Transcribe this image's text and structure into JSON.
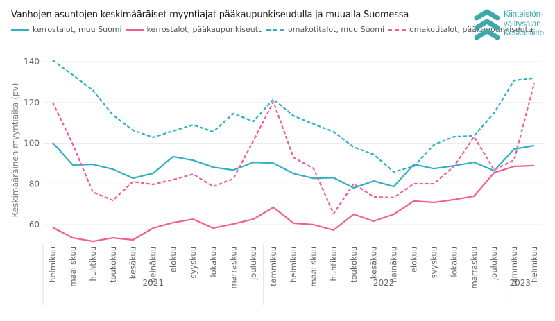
{
  "chart_data": {
    "type": "line",
    "title": "Vanhojen asuntojen keskimääräiset myyntiajat pääkaupunkiseudulla ja muualla Suomessa",
    "xlabel": "",
    "ylabel": "Keskimääräinen myyntiaika (pv)",
    "ylim": [
      50,
      145
    ],
    "yticks": [
      60,
      80,
      100,
      120,
      140
    ],
    "grid": true,
    "legend_position": "top-left",
    "categories": [
      "helmikuu",
      "maaliskuu",
      "huhtikuu",
      "toukokuu",
      "kesäkuu",
      "heinäkuu",
      "elokuu",
      "syyskuu",
      "lokakuu",
      "marraskuu",
      "joulukuu",
      "tammikuu",
      "helmikuu",
      "maaliskuu",
      "huhtikuu",
      "toukokuu",
      "kesäkuu",
      "heinäkuu",
      "elokuu",
      "syyskuu",
      "lokakuu",
      "marraskuu",
      "joulukuu",
      "tammikuu",
      "helmikuu"
    ],
    "year_groups": [
      {
        "label": "2021",
        "count": 11
      },
      {
        "label": "2022",
        "count": 12
      },
      {
        "label": "2023",
        "count": 2
      }
    ],
    "series": [
      {
        "name": "kerrostalot, muu Suomi",
        "color": "#2fb0c3",
        "dash": false,
        "values": [
          100.2,
          89.3,
          89.6,
          87.2,
          82.8,
          85.2,
          93.4,
          91.6,
          88.2,
          86.8,
          90.6,
          90.2,
          85.1,
          82.7,
          83.0,
          78.0,
          81.4,
          78.7,
          89.6,
          87.5,
          88.9,
          90.6,
          86.5,
          97.1,
          98.8
        ]
      },
      {
        "name": "kerrostalot, pääkaupunkiseutu",
        "color": "#f45d92",
        "dash": false,
        "values": [
          58.6,
          53.5,
          51.8,
          53.5,
          52.5,
          58.3,
          61.0,
          62.7,
          58.3,
          60.3,
          62.7,
          68.5,
          60.7,
          60.0,
          57.3,
          65.1,
          61.7,
          65.1,
          71.6,
          70.9,
          72.3,
          74.0,
          85.5,
          88.6,
          89.0
        ]
      },
      {
        "name": "omakotitalot, muu Suomi",
        "color": "#2fb0c3",
        "dash": true,
        "values": [
          140.7,
          133.5,
          126.0,
          113.8,
          106.3,
          102.9,
          106.0,
          109.0,
          105.6,
          114.5,
          110.7,
          121.6,
          113.4,
          109.4,
          105.6,
          98.1,
          94.4,
          85.9,
          88.6,
          99.2,
          103.2,
          103.6,
          114.8,
          130.8,
          131.9
        ]
      },
      {
        "name": "omakotitalot, pääkaupunkiseutu",
        "color": "#f45d92",
        "dash": true,
        "values": [
          120.0,
          99.5,
          76.0,
          71.9,
          81.1,
          79.7,
          82.1,
          84.8,
          78.7,
          82.5,
          101.2,
          120.3,
          93.0,
          87.6,
          65.4,
          80.1,
          73.6,
          73.3,
          80.1,
          80.1,
          88.6,
          103.2,
          86.9,
          91.7,
          129.4
        ]
      }
    ]
  },
  "logo": {
    "lines": [
      "Kiinteistön-",
      "välitysalan",
      "Keskusliitto"
    ],
    "color": "#3aa8ad"
  }
}
